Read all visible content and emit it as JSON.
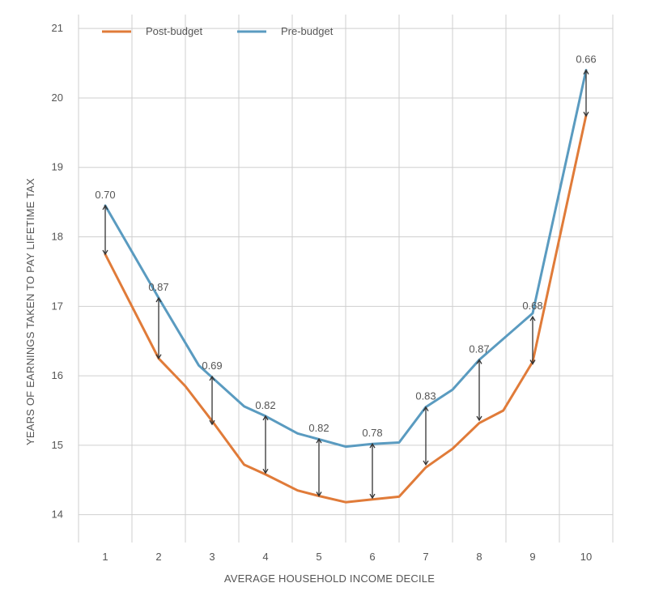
{
  "chart_data": {
    "type": "line",
    "title": "",
    "xlabel": "AVERAGE HOUSEHOLD INCOME DECILE",
    "ylabel": "YEARS OF EARNINGS TAKEN TO PAY LIFETIME TAX",
    "x_range": [
      0,
      10
    ],
    "ylim": [
      13.6,
      21.2
    ],
    "y_ticks": [
      14,
      15,
      16,
      17,
      18,
      19,
      20,
      21
    ],
    "categories": [
      "1",
      "2",
      "3",
      "4",
      "5",
      "6",
      "7",
      "8",
      "9",
      "10"
    ],
    "legend_position": "top-left",
    "grid": true,
    "series": [
      {
        "name": "Post-budget",
        "color": "#e07b39",
        "x": [
          0.5,
          1.5,
          2.0,
          2.5,
          3.1,
          3.5,
          4.1,
          4.5,
          5.0,
          5.5,
          6.0,
          6.5,
          7.0,
          7.5,
          7.95,
          8.5,
          9.5
        ],
        "y": [
          17.75,
          16.25,
          15.85,
          15.35,
          14.72,
          14.58,
          14.35,
          14.27,
          14.18,
          14.22,
          14.26,
          14.68,
          14.95,
          15.32,
          15.5,
          16.2,
          19.75
        ]
      },
      {
        "name": "Pre-budget",
        "color": "#5a9bc0",
        "x": [
          0.5,
          1.5,
          2.25,
          3.1,
          3.5,
          4.1,
          5.0,
          5.5,
          6.0,
          6.5,
          7.0,
          7.5,
          8.5,
          9.5
        ],
        "y": [
          18.45,
          17.12,
          16.15,
          15.56,
          15.42,
          15.17,
          14.98,
          15.02,
          15.04,
          15.55,
          15.8,
          16.23,
          16.9,
          20.4
        ]
      }
    ],
    "annotations": [
      {
        "label": "0.70",
        "x": 0.5,
        "y_top": 18.45,
        "y_bottom": 17.75
      },
      {
        "label": "0.87",
        "x": 1.5,
        "y_top": 17.12,
        "y_bottom": 16.25
      },
      {
        "label": "0.69",
        "x": 2.5,
        "y_top": 15.99,
        "y_bottom": 15.3
      },
      {
        "label": "0.82",
        "x": 3.5,
        "y_top": 15.42,
        "y_bottom": 14.6
      },
      {
        "label": "0.82",
        "x": 4.5,
        "y_top": 15.09,
        "y_bottom": 14.27
      },
      {
        "label": "0.78",
        "x": 5.5,
        "y_top": 15.02,
        "y_bottom": 14.24
      },
      {
        "label": "0.83",
        "x": 6.5,
        "y_top": 15.55,
        "y_bottom": 14.72
      },
      {
        "label": "0.87",
        "x": 7.5,
        "y_top": 16.23,
        "y_bottom": 15.36
      },
      {
        "label": "0.68",
        "x": 8.5,
        "y_top": 16.85,
        "y_bottom": 16.17
      },
      {
        "label": "0.66",
        "x": 9.5,
        "y_top": 20.4,
        "y_bottom": 19.74
      }
    ]
  }
}
